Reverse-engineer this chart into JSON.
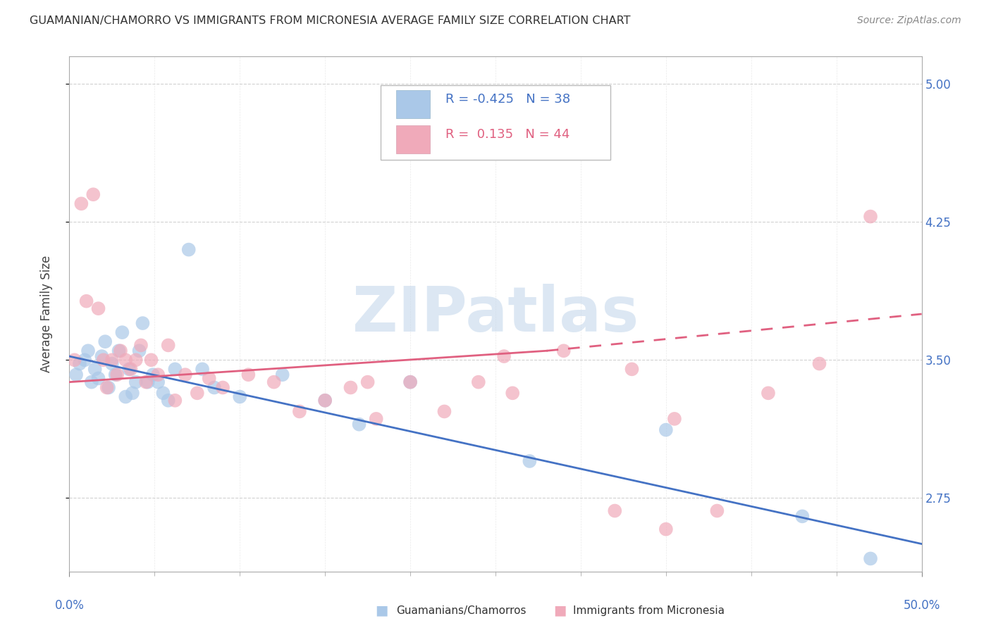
{
  "title": "GUAMANIAN/CHAMORRO VS IMMIGRANTS FROM MICRONESIA AVERAGE FAMILY SIZE CORRELATION CHART",
  "source": "Source: ZipAtlas.com",
  "ylabel": "Average Family Size",
  "xlim": [
    0.0,
    50.0
  ],
  "ylim": [
    2.35,
    5.15
  ],
  "yticks": [
    2.75,
    3.5,
    4.25,
    5.0
  ],
  "ytick_labels": [
    "2.75",
    "3.50",
    "4.25",
    "5.00"
  ],
  "color_blue_fill": "#aac8e8",
  "color_pink_fill": "#f0aaba",
  "color_trend_blue": "#4472c4",
  "color_trend_pink": "#e06080",
  "watermark_color": "#c5d8ec",
  "background_color": "#ffffff",
  "grid_color": "#cccccc",
  "blue_scatter_x": [
    0.4,
    0.6,
    0.9,
    1.1,
    1.3,
    1.5,
    1.7,
    1.9,
    2.1,
    2.3,
    2.5,
    2.7,
    2.9,
    3.1,
    3.3,
    3.5,
    3.7,
    3.9,
    4.1,
    4.3,
    4.6,
    4.9,
    5.2,
    5.5,
    5.8,
    6.2,
    7.0,
    7.8,
    8.5,
    10.0,
    12.5,
    15.0,
    17.0,
    20.0,
    27.0,
    35.0,
    43.0,
    47.0
  ],
  "blue_scatter_y": [
    3.42,
    3.48,
    3.5,
    3.55,
    3.38,
    3.45,
    3.4,
    3.52,
    3.6,
    3.35,
    3.48,
    3.42,
    3.55,
    3.65,
    3.3,
    3.45,
    3.32,
    3.38,
    3.55,
    3.7,
    3.38,
    3.42,
    3.38,
    3.32,
    3.28,
    3.45,
    4.1,
    3.45,
    3.35,
    3.3,
    3.42,
    3.28,
    3.15,
    3.38,
    2.95,
    3.12,
    2.65,
    2.42
  ],
  "pink_scatter_x": [
    0.3,
    0.7,
    1.0,
    1.4,
    1.7,
    2.0,
    2.2,
    2.5,
    2.8,
    3.0,
    3.3,
    3.6,
    3.9,
    4.2,
    4.5,
    4.8,
    5.2,
    5.8,
    6.2,
    6.8,
    7.5,
    8.2,
    9.0,
    10.5,
    12.0,
    13.5,
    15.0,
    16.5,
    18.0,
    20.0,
    22.0,
    24.0,
    26.0,
    29.0,
    32.0,
    35.0,
    38.0,
    41.0,
    44.0,
    47.0,
    35.5,
    25.5,
    17.5,
    33.0
  ],
  "pink_scatter_y": [
    3.5,
    4.35,
    3.82,
    4.4,
    3.78,
    3.5,
    3.35,
    3.5,
    3.42,
    3.55,
    3.5,
    3.45,
    3.5,
    3.58,
    3.38,
    3.5,
    3.42,
    3.58,
    3.28,
    3.42,
    3.32,
    3.4,
    3.35,
    3.42,
    3.38,
    3.22,
    3.28,
    3.35,
    3.18,
    3.38,
    3.22,
    3.38,
    3.32,
    3.55,
    2.68,
    2.58,
    2.68,
    3.32,
    3.48,
    4.28,
    3.18,
    3.52,
    3.38,
    3.45
  ],
  "legend_r1_val": "-0.425",
  "legend_n1_val": "38",
  "legend_r2_val": "0.135",
  "legend_n2_val": "44"
}
